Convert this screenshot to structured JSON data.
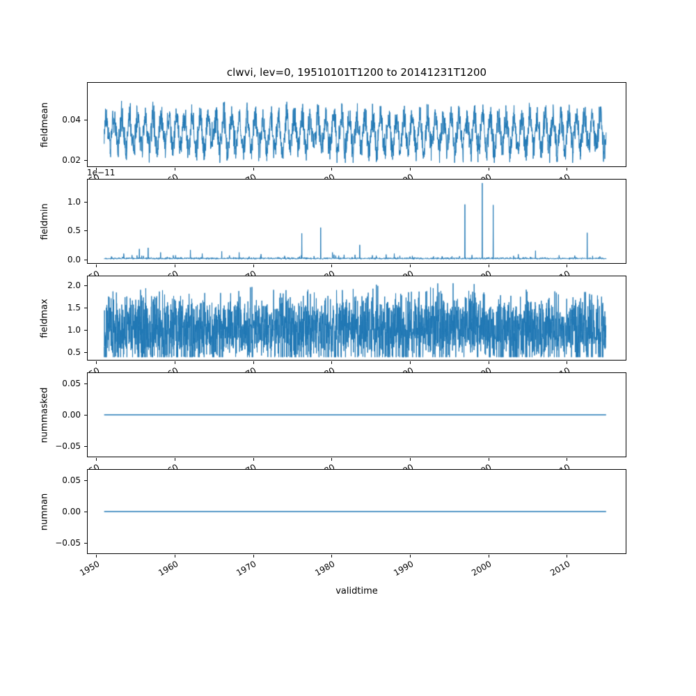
{
  "title": "clwvi, lev=0, 19510101T1200 to 20141231T1200",
  "xlabel": "validtime",
  "line_color": "#1f77b4",
  "x_lim": [
    1948.9,
    2017.5
  ],
  "x_data_range": [
    1951.0,
    2015.0
  ],
  "x_ticks": [
    1950,
    1960,
    1970,
    1980,
    1990,
    2000,
    2010
  ],
  "chart_data": [
    {
      "type": "line",
      "name": "fieldmean",
      "ylabel": "fieldmean",
      "ytick_values": [
        0.02,
        0.04
      ],
      "ytick_labels": [
        "0.02",
        "0.04"
      ],
      "ylim": [
        0.017,
        0.058
      ],
      "series": {
        "kind": "seasonal",
        "seed": 7,
        "n": 2340,
        "base": 0.0335,
        "seasonal_amp": 0.0105,
        "noise_amp": 0.0062,
        "spike_prob": 0.01,
        "spike_amp": 0.007,
        "clip": [
          0.0187,
          0.0578
        ]
      }
    },
    {
      "type": "line",
      "name": "fieldmin",
      "ylabel": "fieldmin",
      "offset_text": "1e−11",
      "ytick_values": [
        0.0,
        0.5,
        1.0
      ],
      "ytick_labels": [
        "0.0",
        "0.5",
        "1.0"
      ],
      "ylim": [
        -0.065,
        1.38
      ],
      "series": {
        "kind": "spiky",
        "seed": 11,
        "n": 2340,
        "base": 0.012,
        "noise_amp": 0.028,
        "bump_prob": 0.02,
        "bump_amp": 0.07,
        "spikes": [
          {
            "x": 1953.5,
            "y": 0.1
          },
          {
            "x": 1955.5,
            "y": 0.18
          },
          {
            "x": 1956.6,
            "y": 0.2
          },
          {
            "x": 1958.2,
            "y": 0.12
          },
          {
            "x": 1960.1,
            "y": 0.07
          },
          {
            "x": 1962.0,
            "y": 0.16
          },
          {
            "x": 1963.5,
            "y": 0.1
          },
          {
            "x": 1966.0,
            "y": 0.14
          },
          {
            "x": 1968.2,
            "y": 0.12
          },
          {
            "x": 1971.0,
            "y": 0.09
          },
          {
            "x": 1974.0,
            "y": 0.06
          },
          {
            "x": 1976.2,
            "y": 0.45
          },
          {
            "x": 1978.6,
            "y": 0.55
          },
          {
            "x": 1980.1,
            "y": 0.12
          },
          {
            "x": 1981.6,
            "y": 0.08
          },
          {
            "x": 1983.6,
            "y": 0.25
          },
          {
            "x": 1985.2,
            "y": 0.07
          },
          {
            "x": 1988.0,
            "y": 0.1
          },
          {
            "x": 1990.3,
            "y": 0.06
          },
          {
            "x": 1993.0,
            "y": 0.05
          },
          {
            "x": 1997.0,
            "y": 0.95
          },
          {
            "x": 1999.2,
            "y": 1.32
          },
          {
            "x": 2000.6,
            "y": 0.94
          },
          {
            "x": 2003.2,
            "y": 0.06
          },
          {
            "x": 2006.0,
            "y": 0.15
          },
          {
            "x": 2009.0,
            "y": 0.07
          },
          {
            "x": 2012.6,
            "y": 0.46
          },
          {
            "x": 2014.2,
            "y": 0.05
          }
        ]
      }
    },
    {
      "type": "line",
      "name": "fieldmax",
      "ylabel": "fieldmax",
      "ytick_values": [
        0.5,
        1.0,
        1.5,
        2.0
      ],
      "ytick_labels": [
        "0.5",
        "1.0",
        "1.5",
        "2.0"
      ],
      "ylim": [
        0.33,
        2.2
      ],
      "series": {
        "kind": "noisy",
        "seed": 13,
        "n": 3200,
        "base": 1.0,
        "noise_amp": 0.75,
        "spike_prob": 0.012,
        "spike_amp": 0.8,
        "clip": [
          0.39,
          2.13
        ]
      }
    },
    {
      "type": "line",
      "name": "nummasked",
      "ylabel": "nummasked",
      "ytick_values": [
        -0.05,
        0.0,
        0.05
      ],
      "ytick_labels": [
        "−0.05",
        "0.00",
        "0.05"
      ],
      "ylim": [
        -0.066,
        0.066
      ],
      "series": {
        "kind": "constant",
        "value": 0.0
      }
    },
    {
      "type": "line",
      "name": "numnan",
      "ylabel": "numnan",
      "ytick_values": [
        -0.05,
        0.0,
        0.05
      ],
      "ytick_labels": [
        "−0.05",
        "0.00",
        "0.05"
      ],
      "ylim": [
        -0.066,
        0.066
      ],
      "series": {
        "kind": "constant",
        "value": 0.0
      }
    }
  ]
}
